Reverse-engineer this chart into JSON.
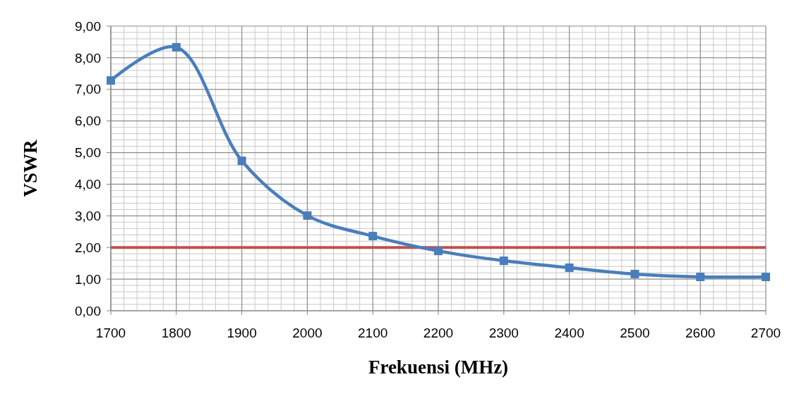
{
  "chart_data": {
    "type": "line",
    "xlabel": "Frekuensi (MHz)",
    "ylabel": "VSWR",
    "x": [
      1700,
      1800,
      1900,
      2000,
      2100,
      2200,
      2300,
      2400,
      2500,
      2600,
      2700
    ],
    "series": [
      {
        "color": "#4a7ebb",
        "values": [
          7.28,
          8.33,
          4.74,
          3.01,
          2.36,
          1.89,
          1.58,
          1.36,
          1.16,
          1.07,
          1.07
        ]
      }
    ],
    "xlim": [
      1700,
      2700
    ],
    "xticks": [
      1700,
      1800,
      1900,
      2000,
      2100,
      2200,
      2300,
      2400,
      2500,
      2600,
      2700
    ],
    "ylim": [
      0,
      9
    ],
    "yticks": [
      {
        "value": 0,
        "label": "0,00"
      },
      {
        "value": 1,
        "label": "1,00"
      },
      {
        "value": 2,
        "label": "2,00"
      },
      {
        "value": 3,
        "label": "3,00"
      },
      {
        "value": 4,
        "label": "4,00"
      },
      {
        "value": 5,
        "label": "5,00"
      },
      {
        "value": 6,
        "label": "6,00"
      },
      {
        "value": 7,
        "label": "7,00"
      },
      {
        "value": 8,
        "label": "8,00"
      },
      {
        "value": 9,
        "label": "9,00"
      }
    ],
    "ref_lines": [
      {
        "axis": "y",
        "value": 2,
        "color": "#c0504d"
      }
    ],
    "grid": true,
    "marker": "square",
    "line_style": "solid"
  }
}
